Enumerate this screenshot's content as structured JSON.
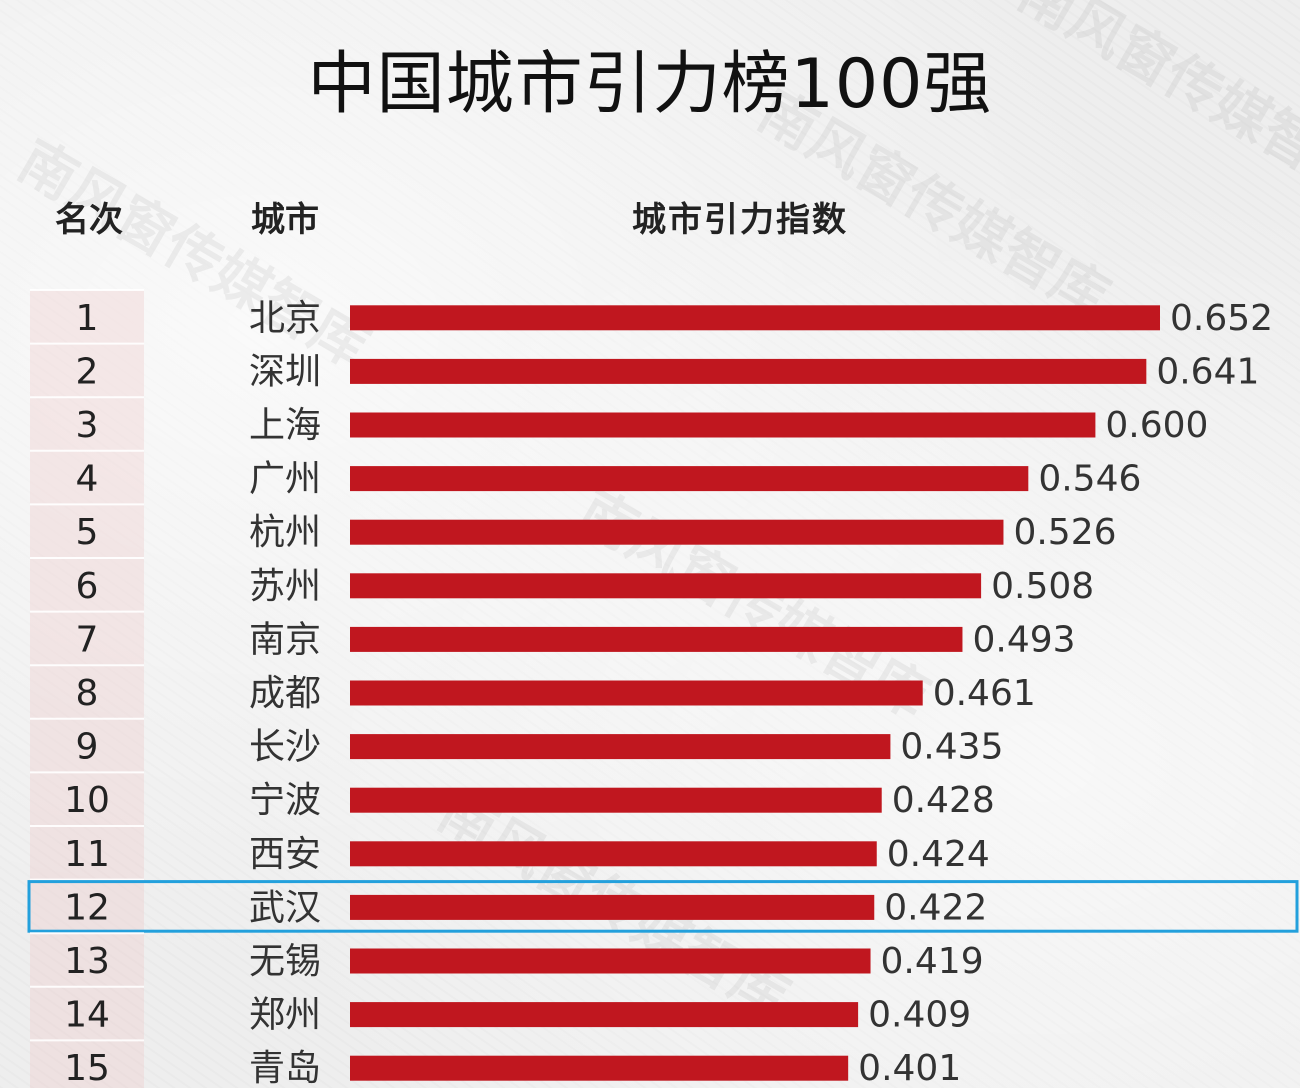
{
  "chart_data": {
    "type": "bar",
    "title": "中国城市引力榜100强",
    "headers": {
      "rank": "名次",
      "city": "城市",
      "index": "城市引力指数"
    },
    "ranks": [
      "1",
      "2",
      "3",
      "4",
      "5",
      "6",
      "7",
      "8",
      "9",
      "10",
      "11",
      "12",
      "13",
      "14",
      "15"
    ],
    "categories": [
      "北京",
      "深圳",
      "上海",
      "广州",
      "杭州",
      "苏州",
      "南京",
      "成都",
      "长沙",
      "宁波",
      "西安",
      "武汉",
      "无锡",
      "郑州",
      "青岛"
    ],
    "values": [
      0.652,
      0.641,
      0.6,
      0.546,
      0.526,
      0.508,
      0.493,
      0.461,
      0.435,
      0.428,
      0.424,
      0.422,
      0.419,
      0.409,
      0.401
    ],
    "value_labels": [
      "0.652",
      "0.641",
      "0.600",
      "0.546",
      "0.526",
      "0.508",
      "0.493",
      "0.461",
      "0.435",
      "0.428",
      "0.424",
      "0.422",
      "0.419",
      "0.409",
      "0.401"
    ],
    "highlighted_rank": "12",
    "bar_color": "#c0171f",
    "highlight_color": "#23a0dc",
    "xlim": [
      0,
      0.652
    ]
  },
  "watermark": "南风窗传媒智库"
}
